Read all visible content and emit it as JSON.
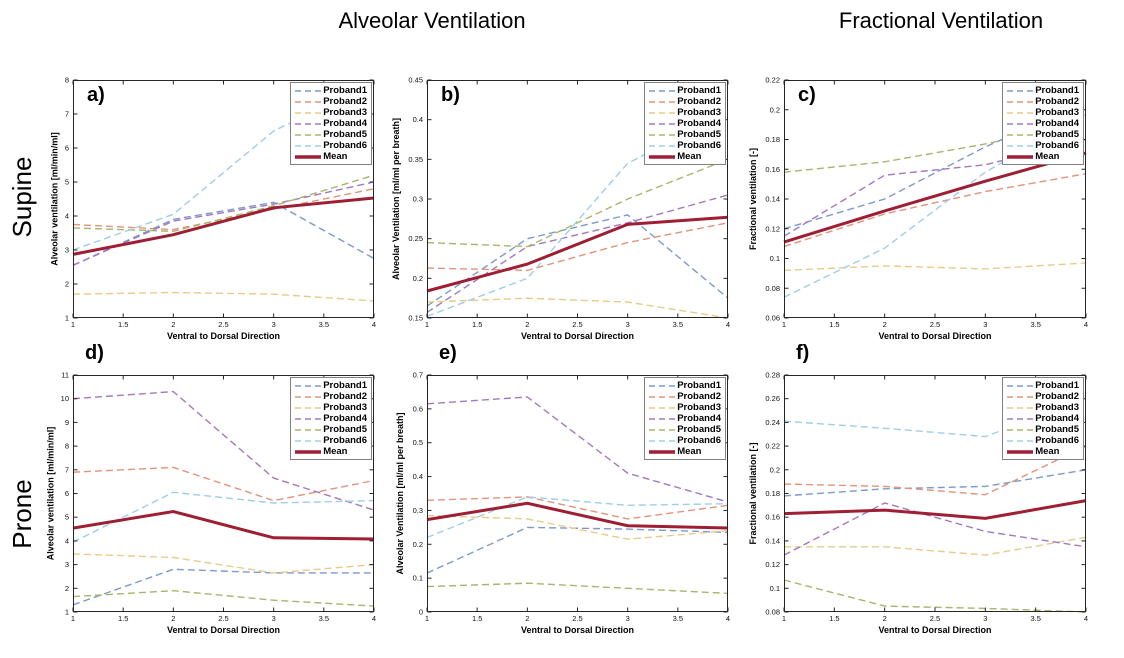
{
  "page": {
    "column_titles": [
      {
        "label": "Alveolar Ventilation"
      },
      {
        "label": "Fractional Ventilation"
      }
    ],
    "row_labels": [
      "Supine",
      "Prone"
    ]
  },
  "style": {
    "series_colors": [
      "#7d99cb",
      "#e29379",
      "#eaca87",
      "#a478bf",
      "#a7b56e",
      "#9fcde9",
      "#9e1f33"
    ],
    "axis_color": "#262626",
    "text_color": "#000000"
  },
  "legend": {
    "labels": [
      "Proband1",
      "Proband2",
      "Proband3",
      "Proband4",
      "Proband5",
      "Proband6",
      "Mean"
    ]
  },
  "chart_data": [
    {
      "id": "a",
      "letter": "a)",
      "type": "line",
      "row": "Supine",
      "column_title": "Alveolar Ventilation",
      "xlabel": "Ventral to Dorsal Direction",
      "ylabel": "Alveolar ventilation [ml/min/ml]",
      "x": [
        1,
        2,
        3,
        4
      ],
      "xlim": [
        1,
        4
      ],
      "xticks": [
        1,
        1.5,
        2,
        2.5,
        3,
        3.5,
        4
      ],
      "xtick_labels": [
        "1",
        "1.5",
        "2",
        "2.5",
        "3",
        "3.5",
        "4"
      ],
      "ylim": [
        1,
        8
      ],
      "yticks": [
        1,
        2,
        3,
        4,
        5,
        6,
        7,
        8
      ],
      "ytick_labels": [
        "1",
        "2",
        "3",
        "4",
        "5",
        "6",
        "7",
        "8"
      ],
      "legend_position": "top-right",
      "grid": false,
      "series": [
        {
          "name": "Proband1",
          "values": [
            2.55,
            3.9,
            4.4,
            2.75
          ]
        },
        {
          "name": "Proband2",
          "values": [
            3.75,
            3.6,
            4.2,
            4.8
          ]
        },
        {
          "name": "Proband3",
          "values": [
            1.7,
            1.75,
            1.7,
            1.5
          ]
        },
        {
          "name": "Proband4",
          "values": [
            2.55,
            3.85,
            4.35,
            5.0
          ]
        },
        {
          "name": "Proband5",
          "values": [
            3.65,
            3.55,
            4.3,
            5.2
          ]
        },
        {
          "name": "Proband6",
          "values": [
            3.0,
            4.05,
            6.5,
            7.95
          ]
        },
        {
          "name": "Mean",
          "values": [
            2.87,
            3.45,
            4.24,
            4.53
          ]
        }
      ]
    },
    {
      "id": "b",
      "letter": "b)",
      "type": "line",
      "row": "Supine",
      "column_title": "Alveolar Ventilation",
      "xlabel": "Ventral to Dorsal Direction",
      "ylabel": "Alveolar Ventilation [ml/ml per breath]",
      "x": [
        1,
        2,
        3,
        4
      ],
      "xlim": [
        1,
        4
      ],
      "xticks": [
        1,
        1.5,
        2,
        2.5,
        3,
        3.5,
        4
      ],
      "xtick_labels": [
        "1",
        "1.5",
        "2",
        "2.5",
        "3",
        "3.5",
        "4"
      ],
      "ylim": [
        0.15,
        0.45
      ],
      "yticks": [
        0.15,
        0.2,
        0.25,
        0.3,
        0.35,
        0.4,
        0.45
      ],
      "ytick_labels": [
        "0.15",
        "0.2",
        "0.25",
        "0.3",
        "0.35",
        "0.4",
        "0.45"
      ],
      "legend_position": "top-right",
      "grid": false,
      "series": [
        {
          "name": "Proband1",
          "values": [
            0.165,
            0.25,
            0.28,
            0.175
          ]
        },
        {
          "name": "Proband2",
          "values": [
            0.213,
            0.21,
            0.245,
            0.27
          ]
        },
        {
          "name": "Proband3",
          "values": [
            0.17,
            0.175,
            0.17,
            0.15
          ]
        },
        {
          "name": "Proband4",
          "values": [
            0.157,
            0.24,
            0.27,
            0.305
          ]
        },
        {
          "name": "Proband5",
          "values": [
            0.245,
            0.24,
            0.3,
            0.35
          ]
        },
        {
          "name": "Proband6",
          "values": [
            0.152,
            0.2,
            0.345,
            0.41
          ]
        },
        {
          "name": "Mean",
          "values": [
            0.184,
            0.218,
            0.268,
            0.277
          ]
        }
      ]
    },
    {
      "id": "c",
      "letter": "c)",
      "type": "line",
      "row": "Supine",
      "column_title": "Fractional Ventilation",
      "xlabel": "Ventral to Dorsal Direction",
      "ylabel": "Fractional ventilation [-]",
      "x": [
        1,
        2,
        3,
        4
      ],
      "xlim": [
        1,
        4
      ],
      "xticks": [
        1,
        1.5,
        2,
        2.5,
        3,
        3.5,
        4
      ],
      "xtick_labels": [
        "1",
        "1.5",
        "2",
        "2.5",
        "3",
        "3.5",
        "4"
      ],
      "ylim": [
        0.06,
        0.22
      ],
      "yticks": [
        0.06,
        0.08,
        0.1,
        0.12,
        0.14,
        0.16,
        0.18,
        0.2,
        0.22
      ],
      "ytick_labels": [
        "0.06",
        "0.08",
        "0.1",
        "0.12",
        "0.14",
        "0.16",
        "0.18",
        "0.2",
        "0.22"
      ],
      "legend_position": "top-right",
      "grid": false,
      "series": [
        {
          "name": "Proband1",
          "values": [
            0.12,
            0.14,
            0.175,
            0.205
          ]
        },
        {
          "name": "Proband2",
          "values": [
            0.108,
            0.13,
            0.145,
            0.157
          ]
        },
        {
          "name": "Proband3",
          "values": [
            0.092,
            0.095,
            0.093,
            0.097
          ]
        },
        {
          "name": "Proband4",
          "values": [
            0.115,
            0.156,
            0.163,
            0.18
          ]
        },
        {
          "name": "Proband5",
          "values": [
            0.158,
            0.165,
            0.177,
            0.192
          ]
        },
        {
          "name": "Proband6",
          "values": [
            0.074,
            0.107,
            0.158,
            0.197
          ]
        },
        {
          "name": "Mean",
          "values": [
            0.111,
            0.132,
            0.152,
            0.171
          ]
        }
      ]
    },
    {
      "id": "d",
      "letter": "d)",
      "type": "line",
      "row": "Prone",
      "column_title": "Alveolar Ventilation",
      "xlabel": "Ventral to Dorsal Direction",
      "ylabel": "Alveolar ventilation [ml/min/ml]",
      "x": [
        1,
        2,
        3,
        4
      ],
      "xlim": [
        1,
        4
      ],
      "xticks": [
        1,
        1.5,
        2,
        2.5,
        3,
        3.5,
        4
      ],
      "xtick_labels": [
        "1",
        "1.5",
        "2",
        "2.5",
        "3",
        "3.5",
        "4"
      ],
      "ylim": [
        1,
        11
      ],
      "yticks": [
        1,
        2,
        3,
        4,
        5,
        6,
        7,
        8,
        9,
        10,
        11
      ],
      "ytick_labels": [
        "1",
        "2",
        "3",
        "4",
        "5",
        "6",
        "7",
        "8",
        "9",
        "10",
        "11"
      ],
      "legend_position": "top-right",
      "grid": false,
      "series": [
        {
          "name": "Proband1",
          "values": [
            1.3,
            2.8,
            2.65,
            2.65
          ]
        },
        {
          "name": "Proband2",
          "values": [
            6.9,
            7.1,
            5.7,
            6.55
          ]
        },
        {
          "name": "Proband3",
          "values": [
            3.45,
            3.3,
            2.65,
            3.0
          ]
        },
        {
          "name": "Proband4",
          "values": [
            10.0,
            10.3,
            6.65,
            5.3
          ]
        },
        {
          "name": "Proband5",
          "values": [
            1.65,
            1.9,
            1.5,
            1.25
          ]
        },
        {
          "name": "Proband6",
          "values": [
            3.95,
            6.05,
            5.6,
            5.7
          ]
        },
        {
          "name": "Mean",
          "values": [
            4.54,
            5.24,
            4.13,
            4.08
          ]
        }
      ]
    },
    {
      "id": "e",
      "letter": "e)",
      "type": "line",
      "row": "Prone",
      "column_title": "Alveolar Ventilation",
      "xlabel": "Ventral to Dorsal Direction",
      "ylabel": "Alveolar Ventilation [ml/ml per breath]",
      "x": [
        1,
        2,
        3,
        4
      ],
      "xlim": [
        1,
        4
      ],
      "xticks": [
        1,
        1.5,
        2,
        2.5,
        3,
        3.5,
        4
      ],
      "xtick_labels": [
        "1",
        "1.5",
        "2",
        "2.5",
        "3",
        "3.5",
        "4"
      ],
      "ylim": [
        0,
        0.7
      ],
      "yticks": [
        0,
        0.1,
        0.2,
        0.3,
        0.4,
        0.5,
        0.6,
        0.7
      ],
      "ytick_labels": [
        "0",
        "0.1",
        "0.2",
        "0.3",
        "0.4",
        "0.5",
        "0.6",
        "0.7"
      ],
      "legend_position": "top-right",
      "grid": false,
      "series": [
        {
          "name": "Proband1",
          "values": [
            0.115,
            0.25,
            0.245,
            0.235
          ]
        },
        {
          "name": "Proband2",
          "values": [
            0.33,
            0.34,
            0.275,
            0.315
          ]
        },
        {
          "name": "Proband3",
          "values": [
            0.285,
            0.275,
            0.215,
            0.24
          ]
        },
        {
          "name": "Proband4",
          "values": [
            0.615,
            0.635,
            0.41,
            0.325
          ]
        },
        {
          "name": "Proband5",
          "values": [
            0.075,
            0.085,
            0.07,
            0.055
          ]
        },
        {
          "name": "Proband6",
          "values": [
            0.22,
            0.34,
            0.315,
            0.32
          ]
        },
        {
          "name": "Mean",
          "values": [
            0.273,
            0.321,
            0.255,
            0.248
          ]
        }
      ]
    },
    {
      "id": "f",
      "letter": "f)",
      "type": "line",
      "row": "Prone",
      "column_title": "Fractional Ventilation",
      "xlabel": "Ventral to Dorsal Direction",
      "ylabel": "Fractional ventilation [-]",
      "x": [
        1,
        2,
        3,
        4
      ],
      "xlim": [
        1,
        4
      ],
      "xticks": [
        1,
        1.5,
        2,
        2.5,
        3,
        3.5,
        4
      ],
      "xtick_labels": [
        "1",
        "1.5",
        "2",
        "2.5",
        "3",
        "3.5",
        "4"
      ],
      "ylim": [
        0.08,
        0.28
      ],
      "yticks": [
        0.08,
        0.1,
        0.12,
        0.14,
        0.16,
        0.18,
        0.2,
        0.22,
        0.24,
        0.26,
        0.28
      ],
      "ytick_labels": [
        "0.08",
        "0.1",
        "0.12",
        "0.14",
        "0.16",
        "0.18",
        "0.2",
        "0.22",
        "0.24",
        "0.26",
        "0.28"
      ],
      "legend_position": "top-right",
      "grid": false,
      "series": [
        {
          "name": "Proband1",
          "values": [
            0.178,
            0.184,
            0.186,
            0.2
          ]
        },
        {
          "name": "Proband2",
          "values": [
            0.188,
            0.186,
            0.179,
            0.22
          ]
        },
        {
          "name": "Proband3",
          "values": [
            0.135,
            0.135,
            0.128,
            0.143
          ]
        },
        {
          "name": "Proband4",
          "values": [
            0.128,
            0.172,
            0.148,
            0.135
          ]
        },
        {
          "name": "Proband5",
          "values": [
            0.107,
            0.085,
            0.083,
            0.08
          ]
        },
        {
          "name": "Proband6",
          "values": [
            0.241,
            0.235,
            0.228,
            0.26
          ]
        },
        {
          "name": "Mean",
          "values": [
            0.163,
            0.166,
            0.159,
            0.174
          ]
        }
      ]
    }
  ]
}
